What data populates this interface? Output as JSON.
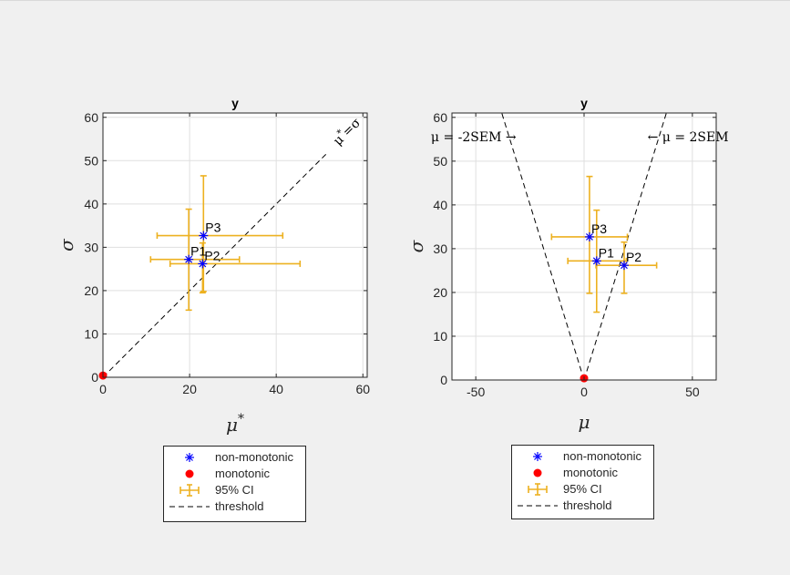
{
  "colors": {
    "background": "#f0f0f0",
    "axes_bg": "#ffffff",
    "non_monotonic": "#0000ff",
    "monotonic": "#ff0000",
    "ci": "#edb120",
    "threshold": "#000000",
    "grid": "#dfdfdf",
    "axis": "#262626"
  },
  "chart_data": [
    {
      "type": "scatter",
      "title": "y",
      "xlabel": "μ*",
      "ylabel": "σ",
      "xlim": [
        0,
        61
      ],
      "ylim": [
        0,
        61
      ],
      "xticks": [
        0,
        20,
        40,
        60
      ],
      "yticks": [
        0,
        10,
        20,
        30,
        40,
        50,
        60
      ],
      "grid": true,
      "series": [
        {
          "name": "non-monotonic",
          "marker": "asterisk",
          "points": [
            {
              "label": "P1",
              "x": 19.8,
              "y": 27.2
            },
            {
              "label": "P2",
              "x": 23.0,
              "y": 26.2
            },
            {
              "label": "P3",
              "x": 23.2,
              "y": 32.7
            }
          ]
        },
        {
          "name": "monotonic",
          "marker": "dot",
          "points": [
            {
              "x": 0,
              "y": 0.4
            }
          ]
        }
      ],
      "error_bars": {
        "name": "95% CI",
        "items": [
          {
            "x": 19.8,
            "y": 27.2,
            "xlo": 11.0,
            "xhi": 31.5,
            "ylo": 15.5,
            "yhi": 38.8
          },
          {
            "x": 23.0,
            "y": 26.2,
            "xlo": 15.5,
            "xhi": 45.5,
            "ylo": 19.5,
            "yhi": 31.0
          },
          {
            "x": 23.2,
            "y": 32.7,
            "xlo": 12.5,
            "xhi": 41.5,
            "ylo": 19.8,
            "yhi": 46.5
          }
        ]
      },
      "threshold": {
        "name": "threshold",
        "lines": [
          [
            [
              0,
              0
            ],
            [
              52,
              52
            ]
          ]
        ]
      },
      "annotations": [
        {
          "text": "μ*=σ",
          "x": 57,
          "y": 56,
          "angle": -45
        }
      ],
      "legend": {
        "placement": "below",
        "entries": [
          "non-monotonic",
          "monotonic",
          "95% CI",
          "threshold"
        ]
      }
    },
    {
      "type": "scatter",
      "title": "y",
      "xlabel": "μ",
      "ylabel": "σ",
      "xlim": [
        -61,
        61
      ],
      "ylim": [
        0,
        61
      ],
      "xticks": [
        -50,
        0,
        50
      ],
      "yticks": [
        0,
        10,
        20,
        30,
        40,
        50,
        60
      ],
      "grid": true,
      "series": [
        {
          "name": "non-monotonic",
          "marker": "asterisk",
          "points": [
            {
              "label": "P1",
              "x": 5.8,
              "y": 27.2
            },
            {
              "label": "P2",
              "x": 18.5,
              "y": 26.2
            },
            {
              "label": "P3",
              "x": 2.5,
              "y": 32.7
            }
          ]
        },
        {
          "name": "monotonic",
          "marker": "dot",
          "points": [
            {
              "x": 0,
              "y": 0.4
            }
          ]
        }
      ],
      "error_bars": {
        "name": "95% CI",
        "items": [
          {
            "x": 5.8,
            "y": 27.2,
            "xlo": -7.5,
            "xhi": 19.5,
            "ylo": 15.5,
            "yhi": 38.8
          },
          {
            "x": 18.5,
            "y": 26.2,
            "xlo": 5.5,
            "xhi": 33.5,
            "ylo": 19.8,
            "yhi": 31.5
          },
          {
            "x": 2.5,
            "y": 32.7,
            "xlo": -15.0,
            "xhi": 20.0,
            "ylo": 19.8,
            "yhi": 46.5
          }
        ]
      },
      "threshold": {
        "name": "threshold",
        "lines": [
          [
            [
              0,
              0
            ],
            [
              -38,
              61
            ]
          ],
          [
            [
              0,
              0
            ],
            [
              38,
              61
            ]
          ]
        ]
      },
      "annotations": [
        {
          "text": "μ = -2SEM →",
          "x": -51,
          "y": 54.5,
          "anchor": "middle"
        },
        {
          "text": "← μ = 2SEM",
          "x": 48,
          "y": 54.5,
          "anchor": "middle"
        }
      ],
      "legend": {
        "placement": "below",
        "entries": [
          "non-monotonic",
          "monotonic",
          "95% CI",
          "threshold"
        ]
      }
    }
  ]
}
